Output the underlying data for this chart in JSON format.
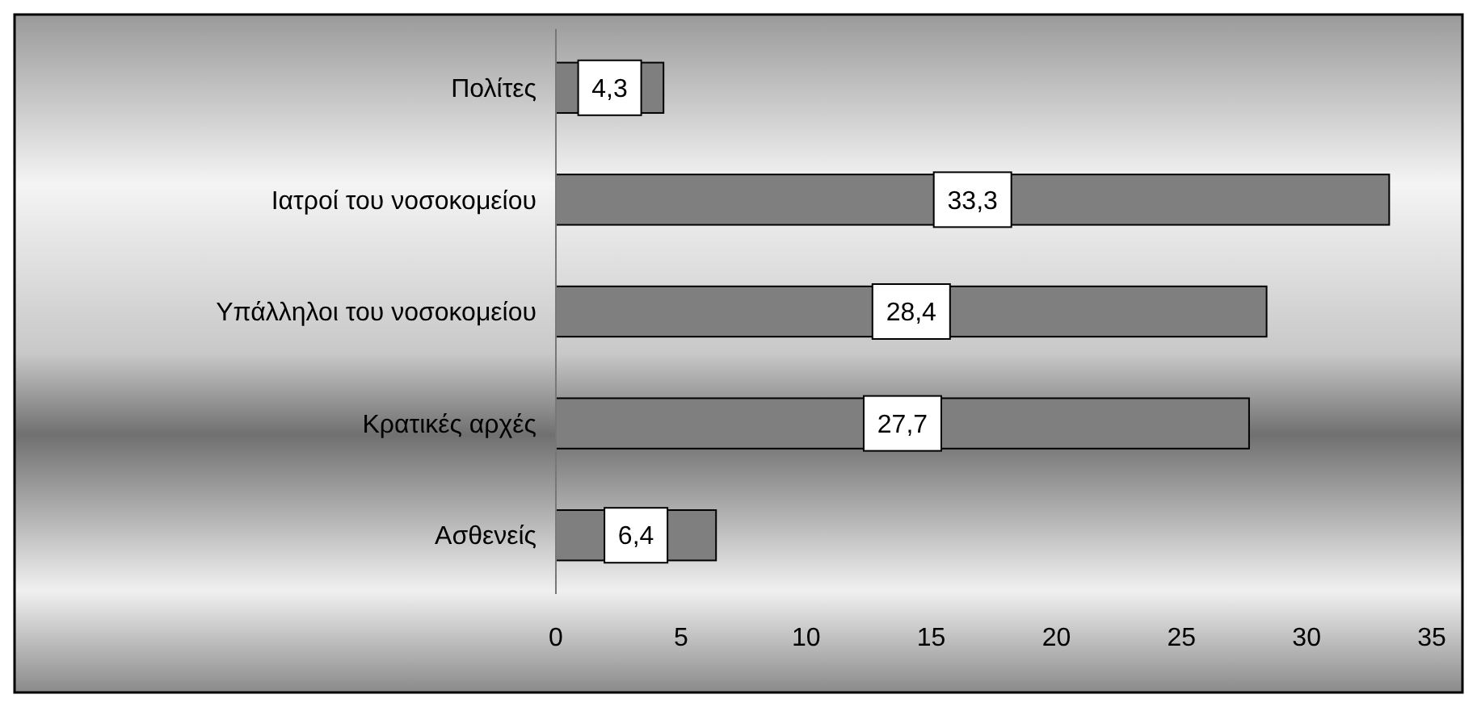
{
  "chart_data": {
    "type": "bar",
    "orientation": "horizontal",
    "categories": [
      "Πολίτες",
      "Ιατροί του νοσοκομείου",
      "Υπάλληλοι του νοσοκομείου",
      "Κρατικές αρχές",
      "Ασθενείς"
    ],
    "values": [
      4.3,
      33.3,
      28.4,
      27.7,
      6.4
    ],
    "value_labels": [
      "4,3",
      "33,3",
      "28,4",
      "27,7",
      "6,4"
    ],
    "color": "#7f7f7f",
    "xlim": [
      0,
      35
    ],
    "xticks": [
      0,
      5,
      10,
      15,
      20,
      25,
      30,
      35
    ],
    "grid": false
  }
}
